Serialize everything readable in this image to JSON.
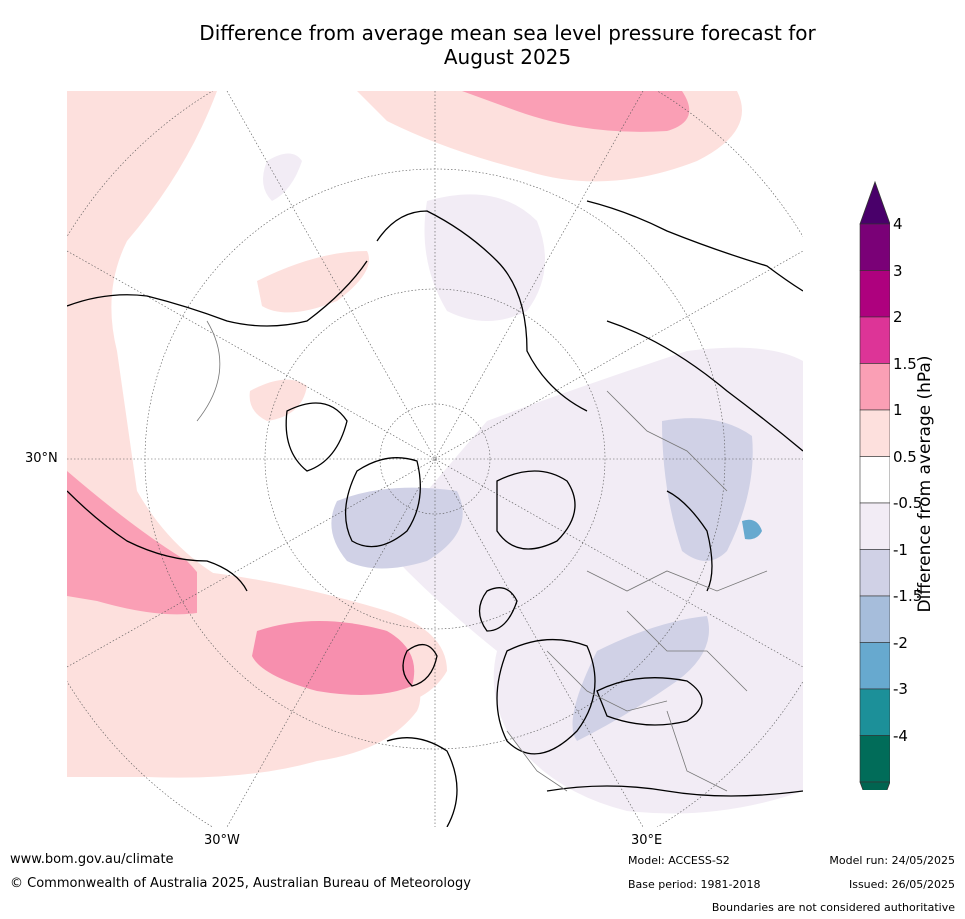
{
  "title_line1": "Difference from average mean sea level pressure forecast for",
  "title_line2": "August 2025",
  "map": {
    "lat_label": "30°N",
    "lon_label_left": "30°W",
    "lon_label_right": "30°E",
    "projection": "north polar stereographic",
    "anomaly_regions": [
      {
        "area": "North Atlantic (south of Greenland to UK)",
        "category": "1 to 1.5"
      },
      {
        "area": "East Pacific off North America",
        "category": "1 to 1.5"
      },
      {
        "area": "North Pacific / Bering region",
        "category": "1 to 1.5"
      },
      {
        "area": "Greenland interior",
        "category": "-1.5 to -1"
      },
      {
        "area": "Eastern Europe / Black Sea",
        "category": "-1.5 to -1"
      },
      {
        "area": "Western Siberia",
        "category": "-1.5 to -1"
      },
      {
        "area": "Arctic Ocean / Scandinavia",
        "category": "-1 to -0.5"
      }
    ]
  },
  "colorbar": {
    "label": "Difference from average (hPa)",
    "ticks": [
      "4",
      "3",
      "2",
      "1.5",
      "1",
      "0.5",
      "-0.5",
      "-1",
      "-1.5",
      "-2",
      "-3",
      "-4"
    ],
    "colors": [
      "#7a0177",
      "#ae017e",
      "#dd3497",
      "#fa9fb5",
      "#fde0dd",
      "#ffffff",
      "#f2ecf5",
      "#d0d1e6",
      "#a6bddb",
      "#67a9cf",
      "#1c9099",
      "#016c59"
    ],
    "over_color": "#49006a",
    "under_color": "#016450"
  },
  "footer": {
    "website": "www.bom.gov.au/climate",
    "copyright": "© Commonwealth of Australia 2025, Australian Bureau of Meteorology",
    "model": "Model: ACCESS-S2",
    "base_period": "Base period: 1981-2018",
    "model_run": "Model run: 24/05/2025",
    "issued": "Issued: 26/05/2025",
    "disclaimer": "Boundaries are not considered authoritative"
  }
}
